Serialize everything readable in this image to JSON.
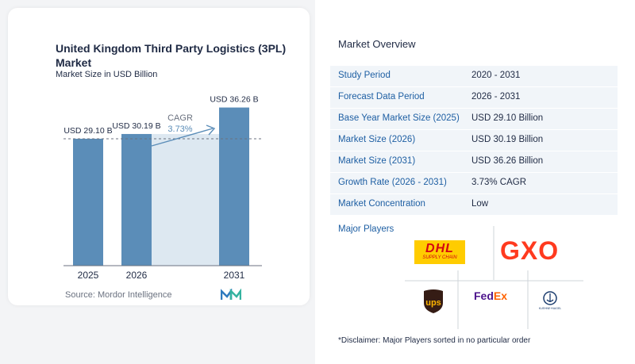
{
  "chart_data": {
    "type": "bar",
    "title": "United Kingdom Third Party Logistics (3PL) Market",
    "subtitle": "Market Size in USD Billion",
    "categories": [
      "2025",
      "2026",
      "2031"
    ],
    "values": [
      29.1,
      30.19,
      36.26
    ],
    "data_labels": [
      "USD 29.10 B",
      "USD 30.19 B",
      "USD 36.26 B"
    ],
    "cagr_label": "CAGR",
    "cagr_value": "3.73%",
    "ylim": [
      0,
      40
    ],
    "colors": {
      "bar": "#5b8db8",
      "band": "#dde8f1",
      "axis": "#6b7280",
      "arrow": "#5b8db8"
    }
  },
  "source": "Source:  Mordor Intelligence",
  "overview": {
    "title": "Market Overview",
    "rows": [
      {
        "label": "Study Period",
        "value": "2020 - 2031"
      },
      {
        "label": "Forecast Data Period",
        "value": "2026 - 2031"
      },
      {
        "label": "Base Year Market Size (2025)",
        "value": "USD 29.10 Billion"
      },
      {
        "label": "Market Size (2026)",
        "value": "USD 30.19 Billion"
      },
      {
        "label": "Market Size (2031)",
        "value": "USD 36.26 Billion"
      },
      {
        "label": "Growth Rate (2026 - 2031)",
        "value": "3.73% CAGR"
      },
      {
        "label": "Market Concentration",
        "value": "Low"
      }
    ]
  },
  "players": {
    "title": "Major Players",
    "logos": [
      {
        "name": "DHL",
        "tagline": "SUPPLY CHAIN",
        "color": "#d40511",
        "bg": "#ffcc00"
      },
      {
        "name": "GXO",
        "color": "#ff3a1f"
      },
      {
        "name": "ups",
        "color": "#ffb500",
        "bg": "#351c15"
      },
      {
        "name": "FedEx",
        "color_fed": "#4d148c",
        "color_ex": "#ff6200"
      },
      {
        "name": "KUEHNE+NAGEL",
        "color": "#1b3c6e"
      }
    ]
  },
  "disclaimer": "*Disclaimer: Major Players sorted in no particular order"
}
